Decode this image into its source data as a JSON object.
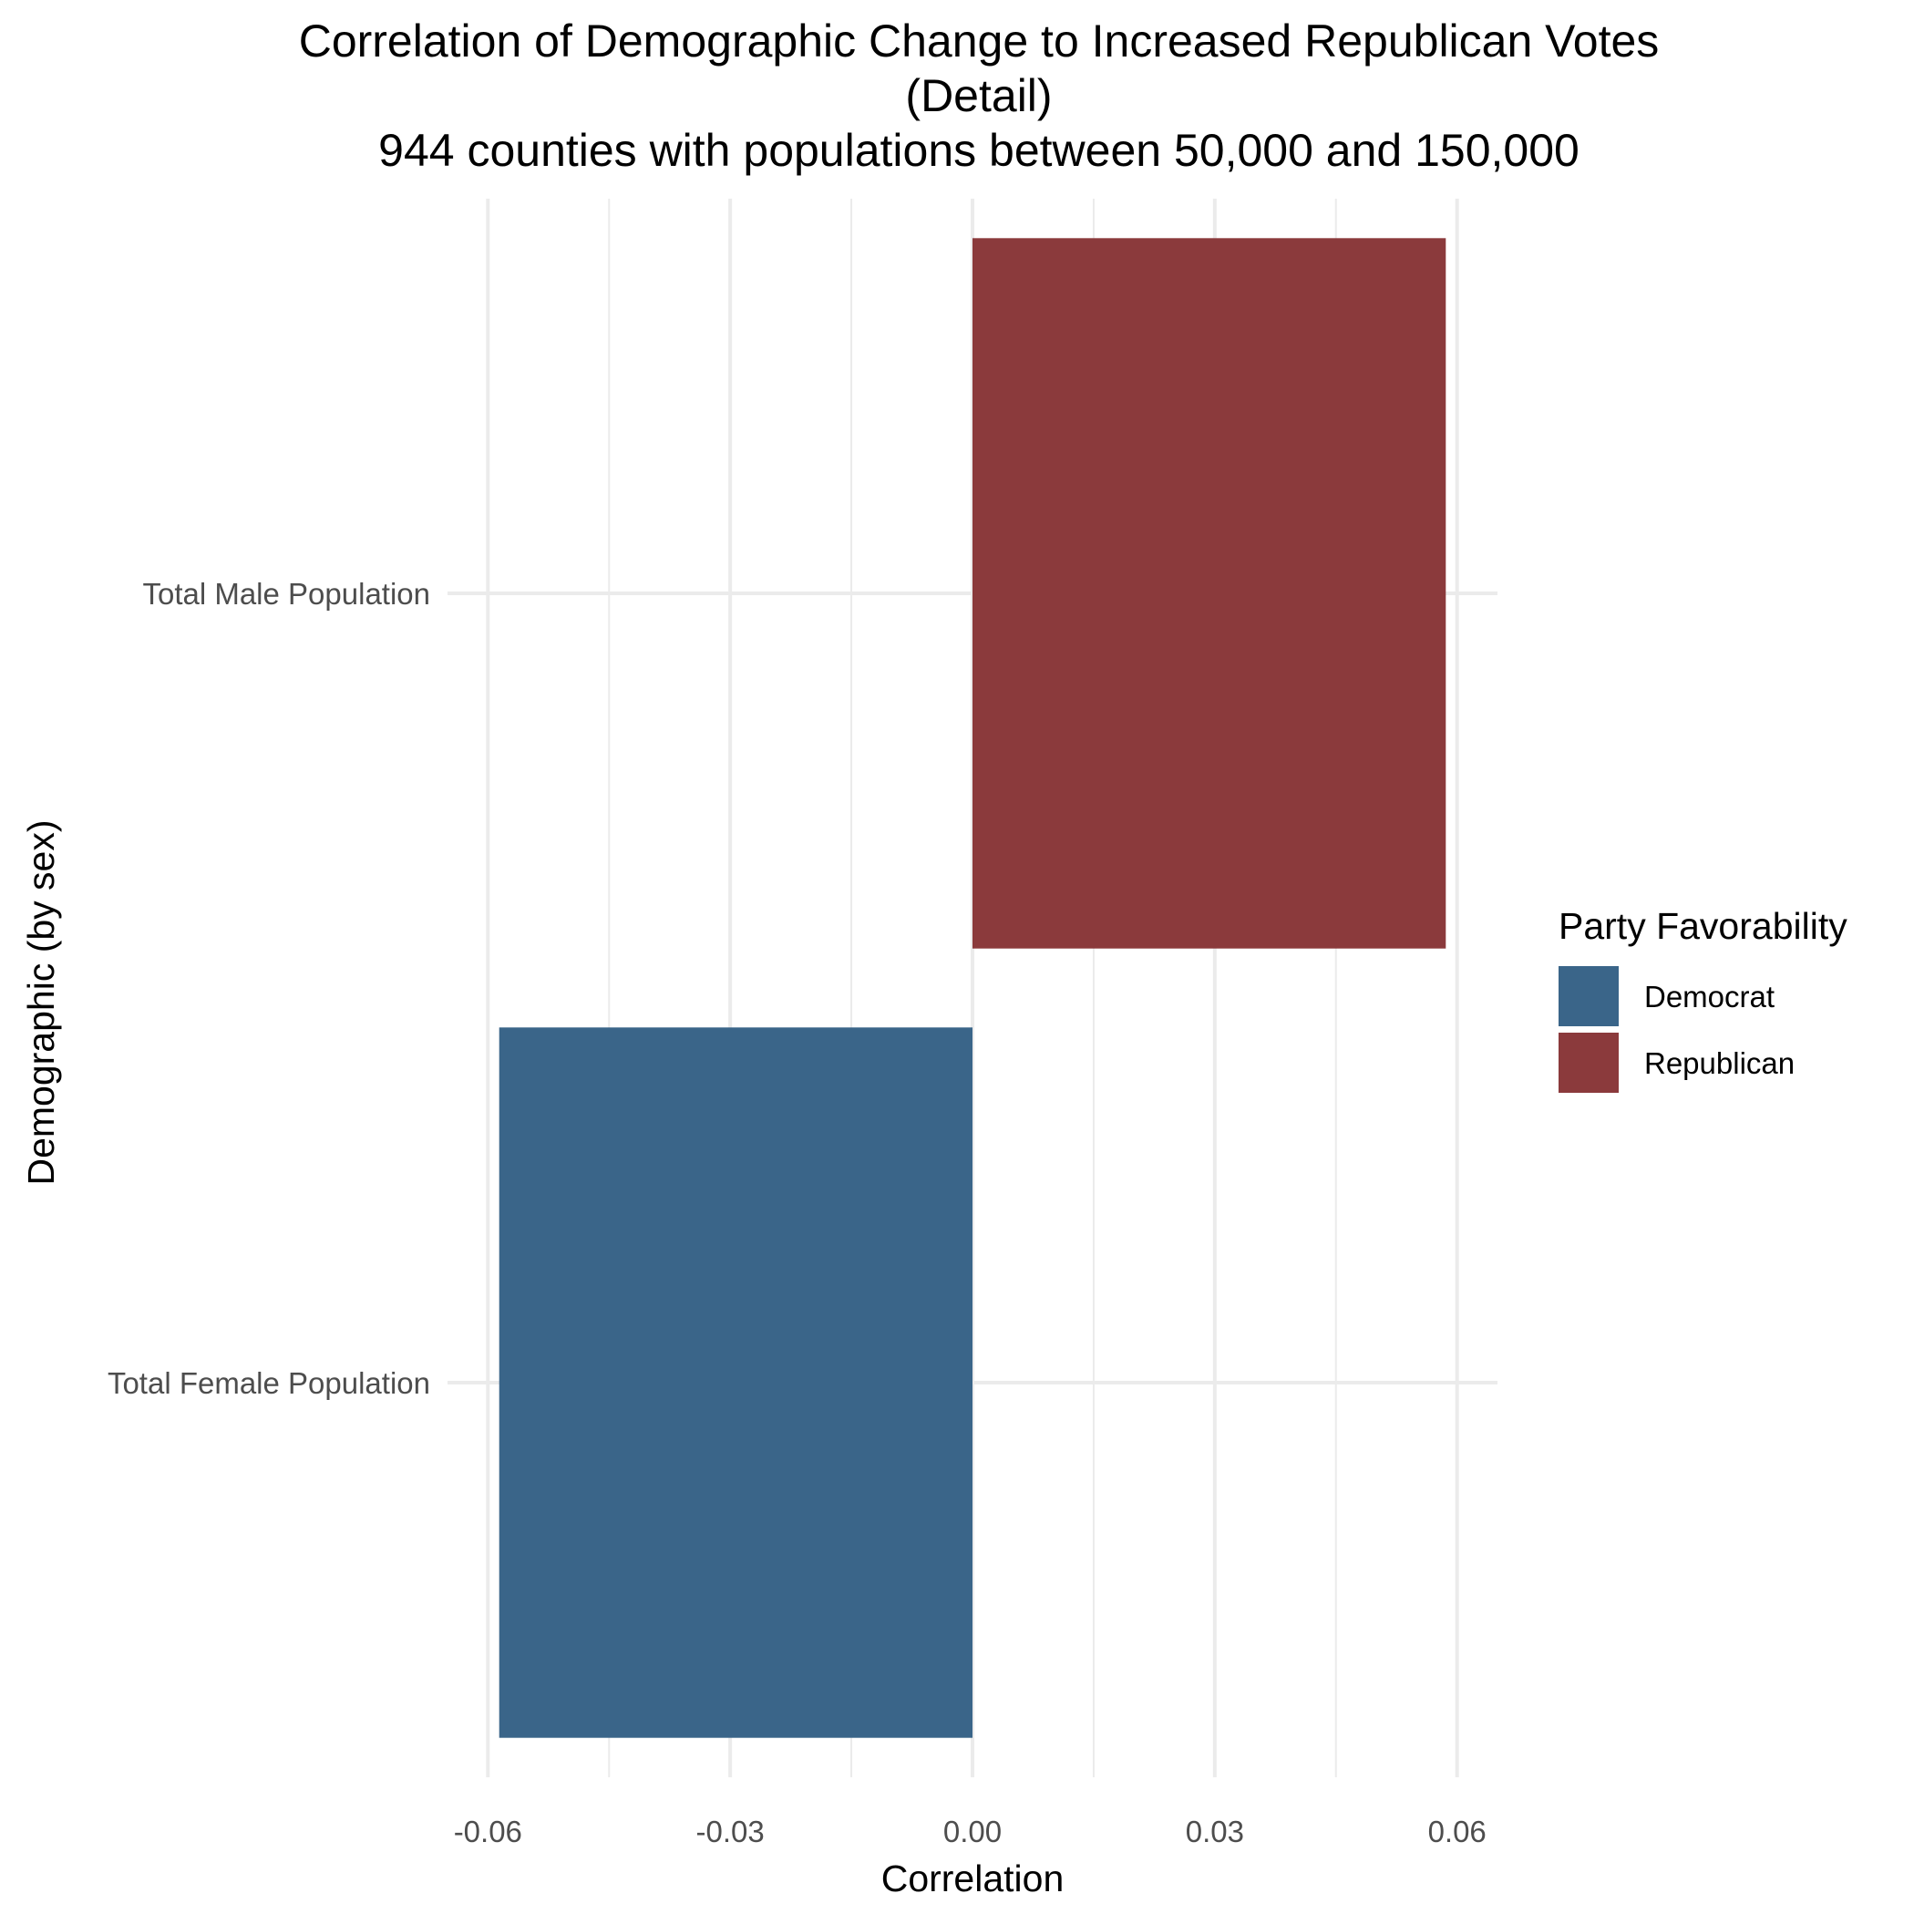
{
  "chart_data": {
    "type": "bar",
    "orientation": "horizontal",
    "title_lines": [
      "Correlation of Demographic Change to Increased Republican Votes",
      "(Detail)",
      "944 counties with populations between 50,000 and 150,000"
    ],
    "xlabel": "Correlation",
    "ylabel": "Demographic (by sex)",
    "xlim": [
      -0.065,
      0.065
    ],
    "x_ticks": [
      -0.06,
      -0.03,
      0.0,
      0.03,
      0.06
    ],
    "x_tick_labels": [
      "-0.06",
      "-0.03",
      "0.00",
      "0.03",
      "0.06"
    ],
    "categories": [
      "Total Male Population",
      "Total Female Population"
    ],
    "values": [
      0.0586,
      -0.0586
    ],
    "party": [
      "Republican",
      "Democrat"
    ],
    "grid": true,
    "legend": {
      "title": "Party Favorability",
      "position": "right",
      "entries": [
        {
          "label": "Democrat",
          "color": "#3a6589"
        },
        {
          "label": "Republican",
          "color": "#8b3a3c"
        }
      ]
    }
  }
}
